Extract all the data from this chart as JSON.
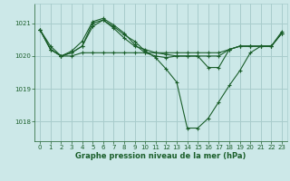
{
  "bg_color": "#cce8e8",
  "grid_color": "#a8cccc",
  "line_color": "#1a5e2a",
  "marker_color": "#1a5e2a",
  "xlabel": "Graphe pression niveau de la mer (hPa)",
  "xlabel_color": "#1a5e2a",
  "tick_color": "#1a5e2a",
  "ylim": [
    1017.4,
    1021.6
  ],
  "xlim": [
    -0.5,
    23.5
  ],
  "yticks": [
    1018,
    1019,
    1020,
    1021
  ],
  "xticks": [
    0,
    1,
    2,
    3,
    4,
    5,
    6,
    7,
    8,
    9,
    10,
    11,
    12,
    13,
    14,
    15,
    16,
    17,
    18,
    19,
    20,
    21,
    22,
    23
  ],
  "series": [
    [
      1020.8,
      1020.3,
      1020.0,
      1020.0,
      1020.1,
      1020.1,
      1020.1,
      1020.1,
      1020.1,
      1020.1,
      1020.1,
      1020.1,
      1020.1,
      1020.1,
      1020.1,
      1020.1,
      1020.1,
      1020.1,
      1020.2,
      1020.3,
      1020.3,
      1020.3,
      1020.3,
      1020.7
    ],
    [
      1020.8,
      1020.2,
      1020.0,
      1020.1,
      1020.3,
      1020.9,
      1021.1,
      1020.85,
      1020.55,
      1020.3,
      1020.2,
      1020.1,
      1020.05,
      1020.0,
      1020.0,
      1020.0,
      1019.65,
      1019.65,
      1020.2,
      1020.3,
      1020.3,
      1020.3,
      1020.3,
      1020.7
    ],
    [
      1020.8,
      1020.2,
      1020.0,
      1020.15,
      1020.45,
      1021.05,
      1021.15,
      1020.95,
      1020.7,
      1020.35,
      1020.1,
      1020.0,
      1019.95,
      1020.0,
      1020.0,
      1020.0,
      1020.0,
      1020.0,
      1020.2,
      1020.3,
      1020.3,
      1020.3,
      1020.3,
      1020.7
    ],
    [
      1020.8,
      1020.2,
      1020.0,
      1020.1,
      1020.3,
      1021.0,
      1021.1,
      1020.9,
      1020.65,
      1020.45,
      1020.15,
      1019.95,
      1019.6,
      1019.2,
      1017.8,
      1017.8,
      1018.1,
      1018.6,
      1019.1,
      1019.55,
      1020.1,
      1020.3,
      1020.3,
      1020.75
    ]
  ]
}
